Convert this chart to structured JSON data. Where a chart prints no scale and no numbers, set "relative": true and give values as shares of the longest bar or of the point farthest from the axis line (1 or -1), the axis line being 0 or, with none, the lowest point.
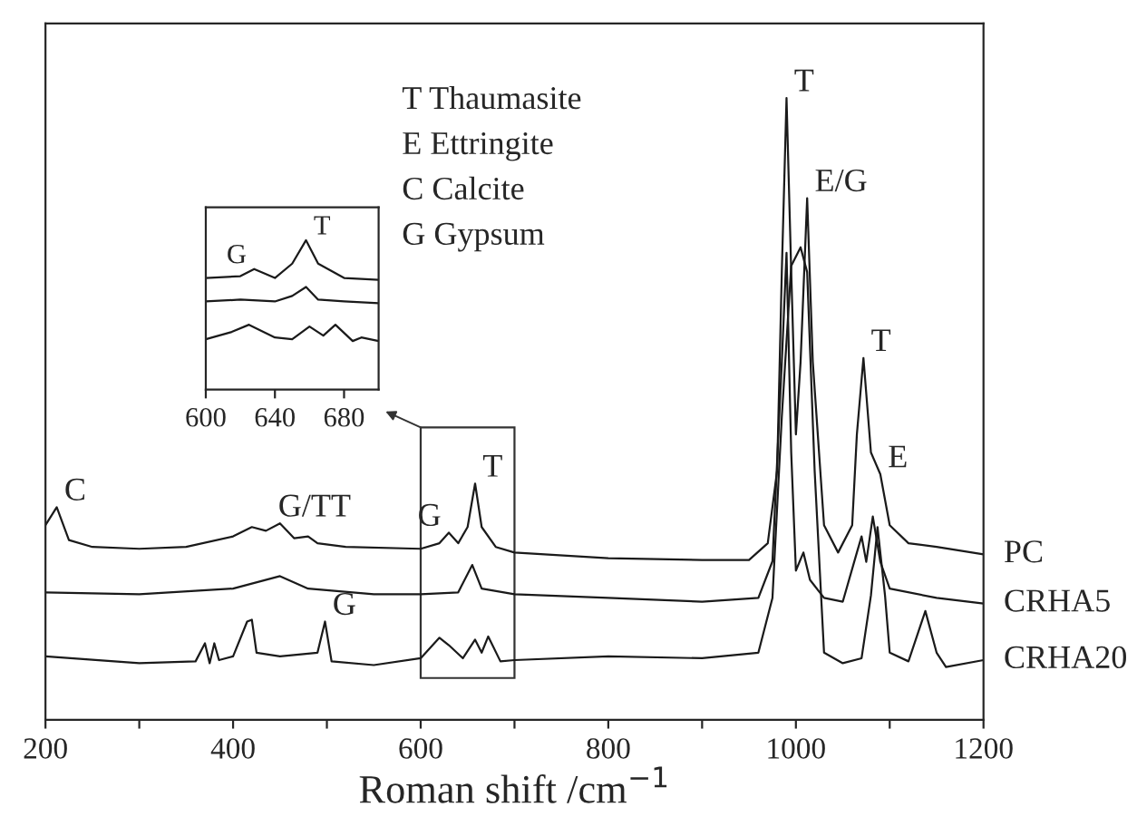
{
  "chart_data": [
    {
      "type": "line",
      "relative": true,
      "xlabel": "Roman shift /cm$^{−1}$",
      "xlim": [
        200,
        1200
      ],
      "xticks": [
        200,
        {
          "value": 300,
          "label": null
        },
        400,
        {
          "value": 500,
          "label": null
        },
        600,
        {
          "value": 700,
          "label": null
        },
        800,
        {
          "value": 900,
          "label": null
        },
        1000,
        {
          "value": 1100,
          "label": null
        },
        1200
      ],
      "legend": false,
      "grid": false,
      "series": [
        {
          "name": "PC",
          "color": "#1a1a1a",
          "x": [
            200,
            212,
            225,
            250,
            300,
            350,
            400,
            420,
            435,
            450,
            465,
            480,
            490,
            520,
            600,
            620,
            630,
            640,
            650,
            658,
            665,
            680,
            700,
            800,
            900,
            950,
            970,
            980,
            985,
            990,
            995,
            1000,
            1005,
            1012,
            1018,
            1030,
            1045,
            1060,
            1065,
            1072,
            1080,
            1090,
            1100,
            1120,
            1150,
            1200
          ],
          "values": [
            0.313,
            0.342,
            0.289,
            0.278,
            0.275,
            0.278,
            0.295,
            0.31,
            0.304,
            0.316,
            0.292,
            0.295,
            0.284,
            0.278,
            0.275,
            0.284,
            0.301,
            0.284,
            0.31,
            0.38,
            0.31,
            0.278,
            0.269,
            0.26,
            0.257,
            0.257,
            0.284,
            0.401,
            0.722,
            1.0,
            0.722,
            0.459,
            0.576,
            0.839,
            0.576,
            0.313,
            0.269,
            0.313,
            0.459,
            0.582,
            0.43,
            0.395,
            0.313,
            0.284,
            0.278,
            0.266
          ]
        },
        {
          "name": "CRHA5",
          "color": "#1a1a1a",
          "x": [
            200,
            300,
            400,
            450,
            480,
            550,
            600,
            640,
            655,
            665,
            700,
            800,
            900,
            960,
            975,
            985,
            990,
            995,
            1000,
            1008,
            1015,
            1030,
            1050,
            1065,
            1070,
            1075,
            1082,
            1090,
            1100,
            1150,
            1200
          ],
          "values": [
            0.205,
            0.202,
            0.211,
            0.231,
            0.211,
            0.202,
            0.202,
            0.205,
            0.249,
            0.211,
            0.202,
            0.196,
            0.19,
            0.196,
            0.255,
            0.576,
            0.751,
            0.43,
            0.24,
            0.269,
            0.225,
            0.196,
            0.19,
            0.269,
            0.295,
            0.254,
            0.327,
            0.254,
            0.211,
            0.196,
            0.187
          ]
        },
        {
          "name": "CRHA20",
          "color": "#1a1a1a",
          "x": [
            200,
            300,
            360,
            370,
            375,
            380,
            385,
            400,
            415,
            420,
            425,
            450,
            490,
            498,
            505,
            550,
            600,
            620,
            630,
            645,
            658,
            665,
            672,
            685,
            700,
            800,
            900,
            960,
            975,
            985,
            995,
            1005,
            1012,
            1020,
            1030,
            1050,
            1070,
            1080,
            1087,
            1095,
            1100,
            1120,
            1138,
            1150,
            1160,
            1200
          ],
          "values": [
            0.102,
            0.091,
            0.094,
            0.123,
            0.091,
            0.123,
            0.096,
            0.102,
            0.158,
            0.161,
            0.108,
            0.102,
            0.108,
            0.158,
            0.094,
            0.088,
            0.099,
            0.132,
            0.12,
            0.099,
            0.129,
            0.108,
            0.134,
            0.094,
            0.096,
            0.102,
            0.099,
            0.108,
            0.196,
            0.488,
            0.73,
            0.76,
            0.72,
            0.4,
            0.108,
            0.091,
            0.099,
            0.2,
            0.31,
            0.2,
            0.108,
            0.094,
            0.175,
            0.108,
            0.085,
            0.096
          ]
        }
      ],
      "annotations": [
        {
          "text": "C",
          "x": 212,
          "y": 0.342
        },
        {
          "text": "G/TT",
          "x": 440,
          "y": 0.316
        },
        {
          "text": "G",
          "x": 630,
          "y": 0.301
        },
        {
          "text": "T",
          "x": 658,
          "y": 0.38
        },
        {
          "text": "G",
          "x": 498,
          "y": 0.158
        },
        {
          "text": "T",
          "x": 990,
          "y": 1.0
        },
        {
          "text": "E/G",
          "x": 1012,
          "y": 0.839
        },
        {
          "text": "T",
          "x": 1072,
          "y": 0.582
        },
        {
          "text": "E",
          "x": 1090,
          "y": 0.395
        },
        "T Thaumasite",
        "E Ettringite",
        "C Calcite",
        "G Gypsum"
      ]
    },
    {
      "type": "line",
      "relative": true,
      "xlim": [
        600,
        700
      ],
      "xticks": [
        600,
        640,
        680
      ],
      "legend": false,
      "grid": false,
      "series": [
        {
          "color": "#1a1a1a",
          "x": [
            600,
            620,
            628,
            640,
            650,
            658,
            665,
            680,
            700
          ],
          "values": [
            0.747,
            0.759,
            0.807,
            0.747,
            0.843,
            1.0,
            0.843,
            0.747,
            0.735
          ]
        },
        {
          "color": "#1a1a1a",
          "x": [
            600,
            620,
            640,
            650,
            658,
            665,
            680,
            700
          ],
          "values": [
            0.59,
            0.602,
            0.59,
            0.627,
            0.687,
            0.602,
            0.59,
            0.578
          ]
        },
        {
          "color": "#1a1a1a",
          "x": [
            600,
            615,
            625,
            640,
            650,
            660,
            668,
            675,
            685,
            690,
            700
          ],
          "values": [
            0.337,
            0.386,
            0.434,
            0.349,
            0.337,
            0.422,
            0.361,
            0.434,
            0.325,
            0.349,
            0.325
          ]
        }
      ],
      "annotations": [
        {
          "text": "G",
          "x": 628,
          "y": 0.807
        },
        {
          "text": "T",
          "x": 658,
          "y": 1.0
        }
      ]
    }
  ]
}
